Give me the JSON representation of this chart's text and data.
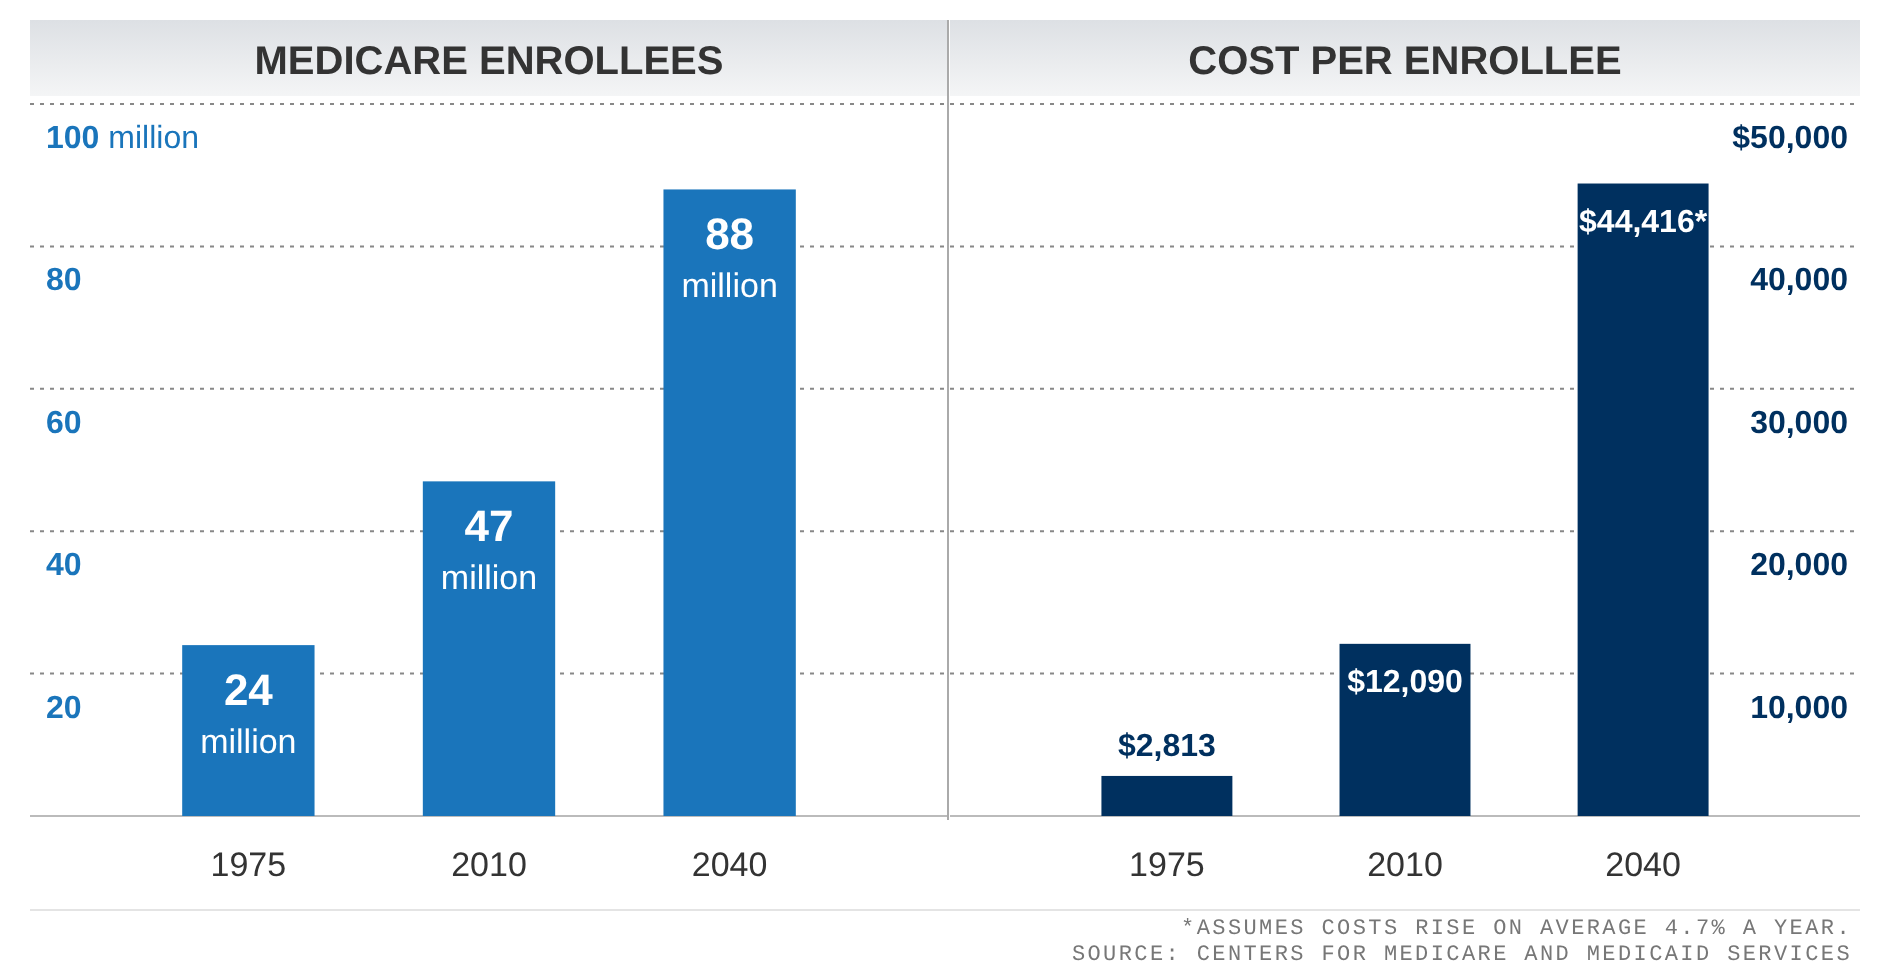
{
  "chart_data": [
    {
      "type": "bar",
      "title": "MEDICARE ENROLLEES",
      "categories": [
        "1975",
        "2010",
        "2040"
      ],
      "series": [
        {
          "color": "#1a75bb",
          "values": [
            24,
            47,
            88
          ],
          "value_labels": [
            "24 million",
            "47 million",
            "88 million"
          ]
        }
      ],
      "ylim": [
        0,
        100
      ],
      "yticks": [
        {
          "value": 100,
          "label": "100 million"
        },
        80,
        60,
        40,
        20
      ],
      "grid": "y"
    },
    {
      "type": "bar",
      "title": "COST PER ENROLLEE",
      "categories": [
        "1975",
        "2010",
        "2040"
      ],
      "series": [
        {
          "color": "#00305f",
          "axis": "y2",
          "values": [
            2813,
            12090,
            44416
          ],
          "value_labels": [
            "$2,813",
            "$12,090",
            "$44,416*"
          ]
        }
      ],
      "y2lim": [
        0,
        50000
      ],
      "y2ticks": [
        {
          "value": 50000,
          "label": "$50,000"
        },
        {
          "value": 40000,
          "label": "40,000"
        },
        {
          "value": 30000,
          "label": "30,000"
        },
        {
          "value": 20000,
          "label": "20,000"
        },
        {
          "value": 10000,
          "label": "10,000"
        }
      ],
      "grid": "y",
      "annotations": [
        "*ASSUMES COSTS RISE ON AVERAGE 4.7% A YEAR.",
        "SOURCE: CENTERS FOR MEDICARE AND MEDICAID SERVICES"
      ]
    }
  ]
}
